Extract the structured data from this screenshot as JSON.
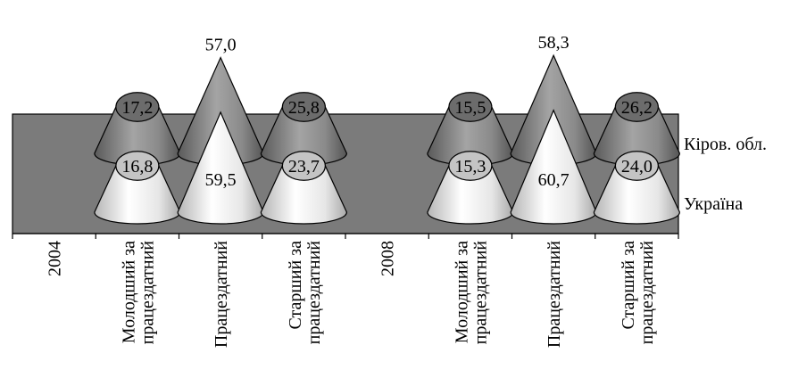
{
  "chart_data": {
    "type": "bar",
    "style": "3d-cone",
    "categories": [
      "2004",
      "Молодший за працездатний",
      "Працездатний",
      "Старший за працездатний",
      "2008",
      "Молодший за працездатний",
      "Працездатний",
      "Старший за працездатний"
    ],
    "series": [
      {
        "name": "Україна",
        "values": [
          null,
          16.8,
          59.5,
          23.7,
          null,
          15.3,
          60.7,
          24.0
        ],
        "labels": [
          "",
          "16,8",
          "59,5",
          "23,7",
          "",
          "15,3",
          "60,7",
          "24,0"
        ]
      },
      {
        "name": "Кіров. обл.",
        "values": [
          null,
          17.2,
          57.0,
          25.8,
          null,
          15.5,
          58.3,
          26.2
        ],
        "labels": [
          "",
          "17,2",
          "57,0",
          "25,8",
          "",
          "15,5",
          "58,3",
          "26,2"
        ]
      }
    ],
    "title": "",
    "xlabel": "",
    "ylabel": "",
    "legend": "right",
    "grid": false,
    "colors": {
      "back_wall": "#7b7b7b",
      "front_cone_light": "#ffffff",
      "front_cone_dark": "#c4c4c4",
      "back_cone_light": "#a8a8a8",
      "back_cone_dark": "#5e5e5e"
    }
  }
}
